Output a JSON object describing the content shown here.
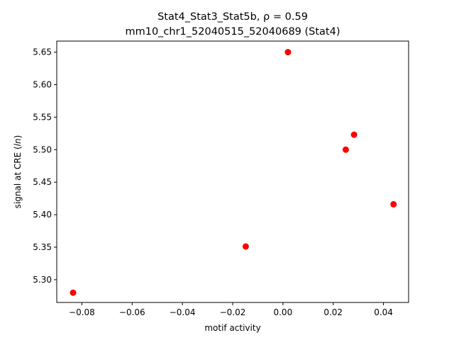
{
  "chart_data": {
    "type": "scatter",
    "title_line1": "Stat4_Stat3_Stat5b, ρ = 0.59",
    "title_line2": "mm10_chr1_52040515_52040689 (Stat4)",
    "xlabel": "motif activity",
    "ylabel": "signal at CRE (ln)",
    "xlim": [
      -0.09,
      0.05
    ],
    "ylim": [
      5.265,
      5.667
    ],
    "xticks": [
      -0.08,
      -0.06,
      -0.04,
      -0.02,
      0.0,
      0.02,
      0.04
    ],
    "xtick_labels": [
      "−0.08",
      "−0.06",
      "−0.04",
      "−0.02",
      "0.00",
      "0.02",
      "0.04"
    ],
    "yticks": [
      5.3,
      5.35,
      5.4,
      5.45,
      5.5,
      5.55,
      5.6,
      5.65
    ],
    "ytick_labels": [
      "5.30",
      "5.35",
      "5.40",
      "5.45",
      "5.50",
      "5.55",
      "5.60",
      "5.65"
    ],
    "points": [
      {
        "x": -0.0835,
        "y": 5.28
      },
      {
        "x": -0.0148,
        "y": 5.351
      },
      {
        "x": 0.002,
        "y": 5.65
      },
      {
        "x": 0.025,
        "y": 5.5
      },
      {
        "x": 0.0283,
        "y": 5.523
      },
      {
        "x": 0.044,
        "y": 5.416
      }
    ],
    "marker_color": "#ff0000",
    "grid": false
  }
}
